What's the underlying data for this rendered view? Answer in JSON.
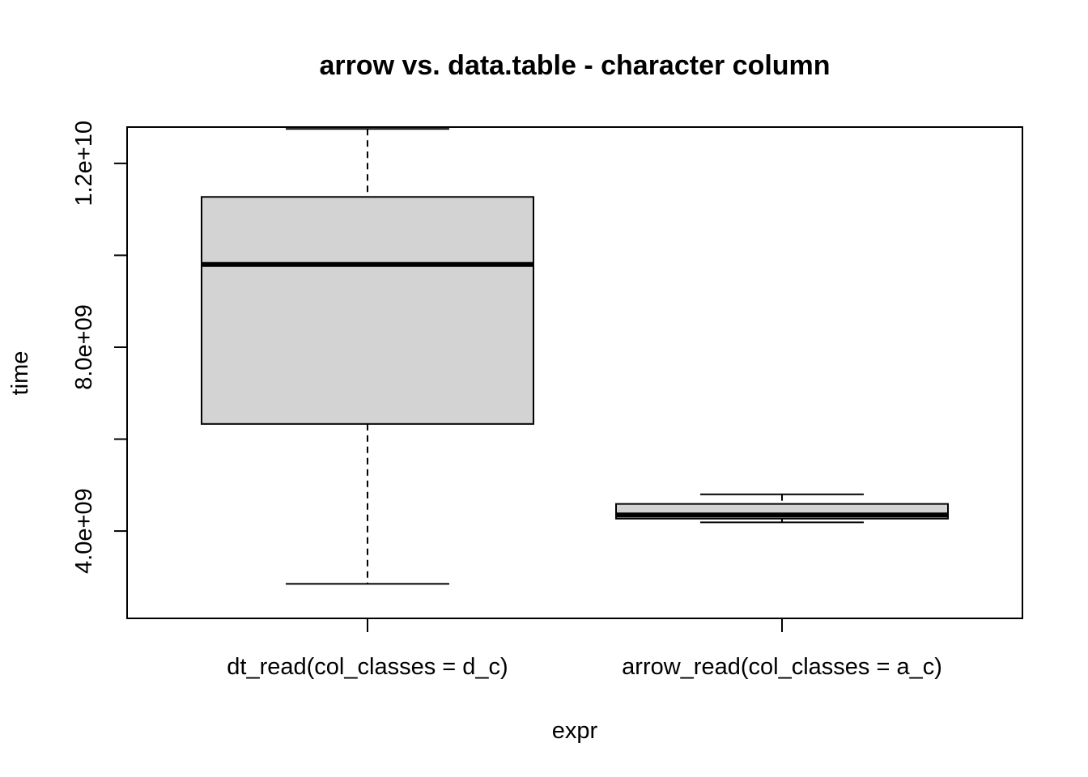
{
  "chart_data": {
    "type": "box",
    "title": "arrow vs. data.table - character column",
    "xlabel": "expr",
    "ylabel": "time",
    "ylim": [
      2100000000,
      12790000000
    ],
    "yticks": [
      4000000000,
      6000000000,
      8000000000,
      10000000000,
      12000000000
    ],
    "ytick_labels": [
      "4.0e+09",
      "",
      "8.0e+09",
      "",
      "1.2e+10"
    ],
    "categories": [
      "dt_read(col_classes = d_c)",
      "arrow_read(col_classes = a_c)"
    ],
    "boxes": [
      {
        "name": "dt_read(col_classes = d_c)",
        "min": 2850000000,
        "q1": 6330000000,
        "median": 9800000000,
        "q3": 11270000000,
        "max": 12750000000
      },
      {
        "name": "arrow_read(col_classes = a_c)",
        "min": 4190000000,
        "q1": 4270000000,
        "median": 4350000000,
        "q3": 4590000000,
        "max": 4800000000
      }
    ],
    "box_fill": "#d3d3d3",
    "grid": false,
    "legend": "none"
  }
}
